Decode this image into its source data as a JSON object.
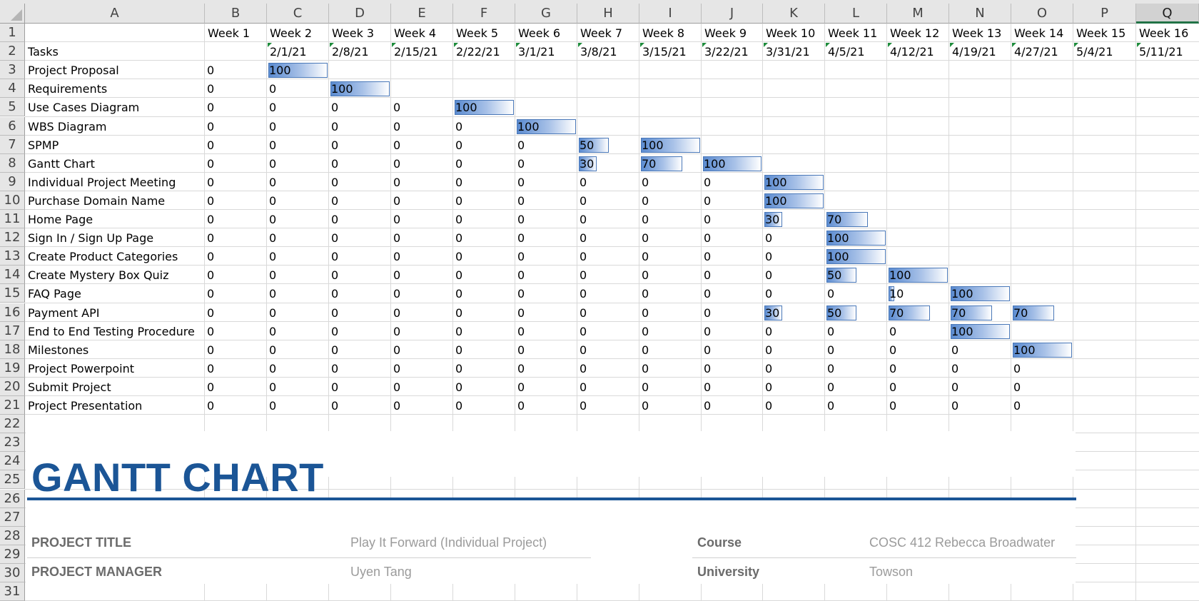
{
  "columns": [
    "A",
    "B",
    "C",
    "D",
    "E",
    "F",
    "G",
    "H",
    "I",
    "J",
    "K",
    "L",
    "M",
    "N",
    "O",
    "P",
    "Q"
  ],
  "selected_column": "Q",
  "rows": [
    "1",
    "2",
    "3",
    "4",
    "5",
    "6",
    "7",
    "8",
    "9",
    "10",
    "11",
    "12",
    "13",
    "14",
    "15",
    "16",
    "17",
    "18",
    "19",
    "20",
    "21",
    "22",
    "23",
    "24",
    "25",
    "26",
    "27",
    "28",
    "29",
    "30",
    "31"
  ],
  "header": {
    "weeks": [
      "Week 1",
      "Week 2",
      "Week 3",
      "Week 4",
      "Week 5",
      "Week 6",
      "Week 7",
      "Week 8",
      "Week 9",
      "Week 10",
      "Week 11",
      "Week 12",
      "Week 13",
      "Week 14",
      "Week 15",
      "Week 16"
    ],
    "tasks_label": "Tasks",
    "dates": [
      "",
      "2/1/21",
      "2/8/21",
      "2/15/21",
      "2/22/21",
      "3/1/21",
      "3/8/21",
      "3/15/21",
      "3/22/21",
      "3/31/21",
      "4/5/21",
      "4/12/21",
      "4/19/21",
      "4/27/21",
      "5/4/21",
      "5/11/21"
    ]
  },
  "tasks": [
    {
      "name": "Project Proposal",
      "values": [
        "0",
        "100"
      ]
    },
    {
      "name": "Requirements",
      "values": [
        "0",
        "0",
        "100"
      ]
    },
    {
      "name": "Use Cases Diagram",
      "values": [
        "0",
        "0",
        "0",
        "0",
        "100"
      ]
    },
    {
      "name": "WBS Diagram",
      "values": [
        "0",
        "0",
        "0",
        "0",
        "0",
        "100"
      ]
    },
    {
      "name": "SPMP",
      "values": [
        "0",
        "0",
        "0",
        "0",
        "0",
        "0",
        "50",
        "100"
      ]
    },
    {
      "name": "Gantt Chart",
      "values": [
        "0",
        "0",
        "0",
        "0",
        "0",
        "0",
        "30",
        "70",
        "100"
      ]
    },
    {
      "name": "Individual Project Meeting",
      "values": [
        "0",
        "0",
        "0",
        "0",
        "0",
        "0",
        "0",
        "0",
        "0",
        "100"
      ]
    },
    {
      "name": "Purchase Domain Name",
      "values": [
        "0",
        "0",
        "0",
        "0",
        "0",
        "0",
        "0",
        "0",
        "0",
        "100"
      ]
    },
    {
      "name": "Home Page",
      "values": [
        "0",
        "0",
        "0",
        "0",
        "0",
        "0",
        "0",
        "0",
        "0",
        "30",
        "70"
      ]
    },
    {
      "name": "Sign In / Sign Up Page",
      "values": [
        "0",
        "0",
        "0",
        "0",
        "0",
        "0",
        "0",
        "0",
        "0",
        "0",
        "100"
      ]
    },
    {
      "name": "Create Product Categories",
      "values": [
        "0",
        "0",
        "0",
        "0",
        "0",
        "0",
        "0",
        "0",
        "0",
        "0",
        "100"
      ]
    },
    {
      "name": "Create Mystery Box Quiz",
      "values": [
        "0",
        "0",
        "0",
        "0",
        "0",
        "0",
        "0",
        "0",
        "0",
        "0",
        "50",
        "100"
      ]
    },
    {
      "name": "FAQ Page",
      "values": [
        "0",
        "0",
        "0",
        "0",
        "0",
        "0",
        "0",
        "0",
        "0",
        "0",
        "0",
        "10",
        "100"
      ]
    },
    {
      "name": "Payment API",
      "values": [
        "0",
        "0",
        "0",
        "0",
        "0",
        "0",
        "0",
        "0",
        "0",
        "30",
        "50",
        "70",
        "70",
        "70"
      ]
    },
    {
      "name": "End to End Testing Procedure",
      "values": [
        "0",
        "0",
        "0",
        "0",
        "0",
        "0",
        "0",
        "0",
        "0",
        "0",
        "0",
        "0",
        "100"
      ]
    },
    {
      "name": "Milestones",
      "values": [
        "0",
        "0",
        "0",
        "0",
        "0",
        "0",
        "0",
        "0",
        "0",
        "0",
        "0",
        "0",
        "0",
        "100"
      ]
    },
    {
      "name": "Project Powerpoint",
      "values": [
        "0",
        "0",
        "0",
        "0",
        "0",
        "0",
        "0",
        "0",
        "0",
        "0",
        "0",
        "0",
        "0",
        "0"
      ]
    },
    {
      "name": "Submit Project",
      "values": [
        "0",
        "0",
        "0",
        "0",
        "0",
        "0",
        "0",
        "0",
        "0",
        "0",
        "0",
        "0",
        "0",
        "0"
      ]
    },
    {
      "name": "Project Presentation",
      "values": [
        "0",
        "0",
        "0",
        "0",
        "0",
        "0",
        "0",
        "0",
        "0",
        "0",
        "0",
        "0",
        "0",
        "0"
      ]
    }
  ],
  "template": {
    "title": "GANTT CHART",
    "project_title_label": "PROJECT TITLE",
    "project_title_value": "Play It Forward (Individual Project)",
    "project_manager_label": "PROJECT MANAGER",
    "project_manager_value": "Uyen Tang",
    "course_label": "Course",
    "course_value": "COSC 412 Rebecca Broadwater",
    "university_label": "University",
    "university_value": "Towson"
  },
  "colors": {
    "accent": "#1b5596",
    "databar": "#5b8bd0",
    "selected_column_underline": "#217346"
  }
}
